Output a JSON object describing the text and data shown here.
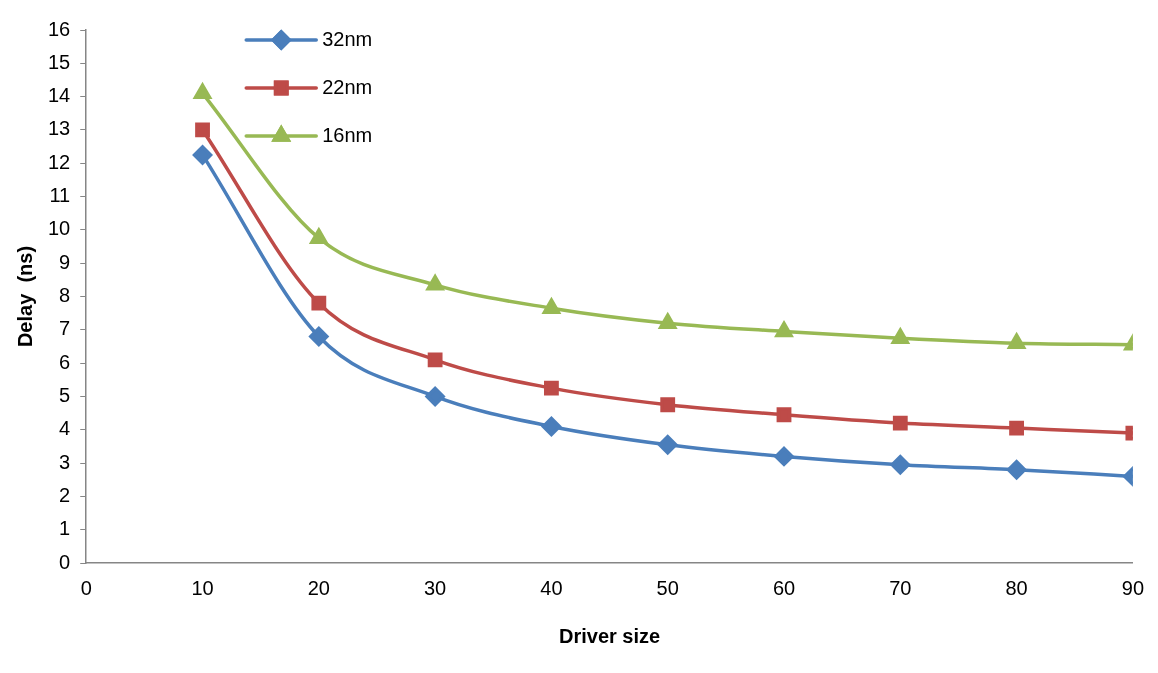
{
  "chart_data": {
    "type": "line",
    "xlabel": "Driver size",
    "ylabel": "Delay  (ns)",
    "x": [
      10,
      20,
      30,
      40,
      50,
      60,
      70,
      80,
      90
    ],
    "xlim": [
      0,
      90
    ],
    "xticks": [
      0,
      10,
      20,
      30,
      40,
      50,
      60,
      70,
      80,
      90
    ],
    "ylim": [
      0,
      16
    ],
    "yticks": [
      0,
      1,
      2,
      3,
      4,
      5,
      6,
      7,
      8,
      9,
      10,
      11,
      12,
      13,
      14,
      15,
      16
    ],
    "grid": false,
    "legend": "top left",
    "series": [
      {
        "name": "32nm",
        "color": "#4a7ebb",
        "marker": "diamond",
        "values": [
          12.25,
          6.8,
          5.0,
          4.1,
          3.55,
          3.2,
          2.95,
          2.8,
          2.6
        ]
      },
      {
        "name": "22nm",
        "color": "#be4b48",
        "marker": "square",
        "values": [
          13.0,
          7.8,
          6.1,
          5.25,
          4.75,
          4.45,
          4.2,
          4.05,
          3.9
        ]
      },
      {
        "name": "16nm",
        "color": "#98b954",
        "marker": "triangle",
        "values": [
          14.1,
          9.75,
          8.35,
          7.65,
          7.2,
          6.95,
          6.75,
          6.6,
          6.55
        ]
      }
    ]
  }
}
